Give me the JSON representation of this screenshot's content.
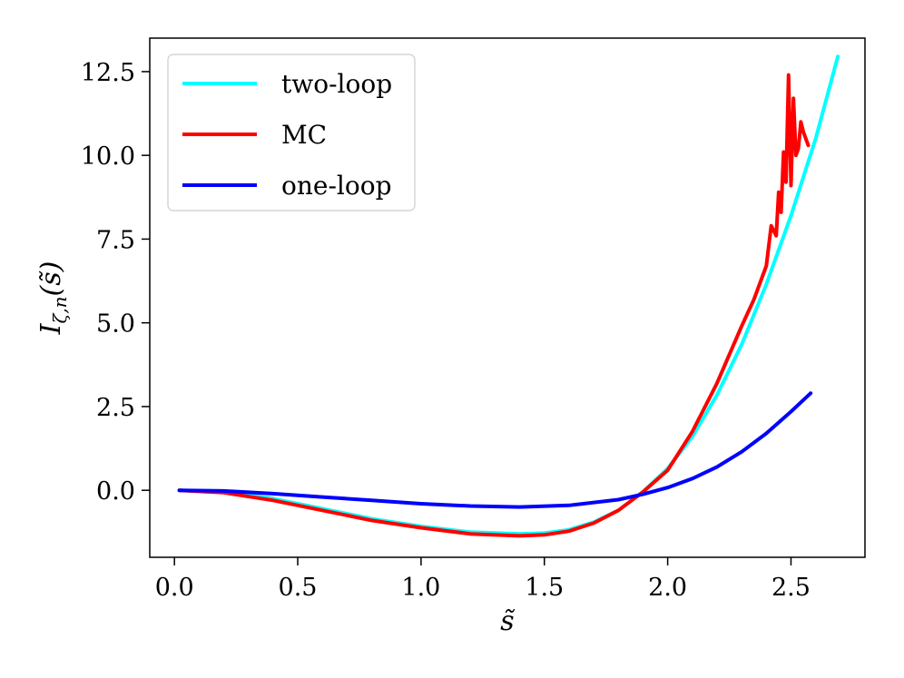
{
  "chart_data": {
    "type": "line",
    "xlabel": "s̃",
    "ylabel": "I",
    "ylabel_sub": "ζ,n",
    "ylabel_arg": "(s̃)",
    "xlim": [
      -0.1,
      2.8
    ],
    "ylim": [
      -2.0,
      13.5
    ],
    "xticks": [
      0.0,
      0.5,
      1.0,
      1.5,
      2.0,
      2.5
    ],
    "xtick_labels": [
      "0.0",
      "0.5",
      "1.0",
      "1.5",
      "2.0",
      "2.5"
    ],
    "yticks": [
      0.0,
      2.5,
      5.0,
      7.5,
      10.0,
      12.5
    ],
    "ytick_labels": [
      "0.0",
      "2.5",
      "5.0",
      "7.5",
      "10.0",
      "12.5"
    ],
    "grid": false,
    "legend_position": "upper-left",
    "colors": {
      "two_loop": "#00ffff",
      "mc": "#ff0000",
      "one_loop": "#0000ff"
    },
    "series": [
      {
        "name": "two-loop",
        "color": "#00ffff",
        "x": [
          0.02,
          0.2,
          0.4,
          0.6,
          0.8,
          1.0,
          1.2,
          1.4,
          1.5,
          1.6,
          1.7,
          1.8,
          1.9,
          2.0,
          2.1,
          2.2,
          2.3,
          2.4,
          2.5,
          2.6,
          2.69
        ],
        "y": [
          0.0,
          -0.05,
          -0.25,
          -0.55,
          -0.85,
          -1.08,
          -1.25,
          -1.3,
          -1.28,
          -1.18,
          -0.95,
          -0.6,
          -0.05,
          0.65,
          1.6,
          2.85,
          4.35,
          6.15,
          8.2,
          10.5,
          12.95
        ]
      },
      {
        "name": "MC",
        "color": "#ff0000",
        "x": [
          0.02,
          0.2,
          0.4,
          0.6,
          0.8,
          1.0,
          1.2,
          1.4,
          1.5,
          1.6,
          1.7,
          1.8,
          1.9,
          2.0,
          2.1,
          2.2,
          2.3,
          2.35,
          2.4,
          2.42,
          2.44,
          2.45,
          2.46,
          2.47,
          2.48,
          2.49,
          2.5,
          2.51,
          2.52,
          2.53,
          2.54,
          2.55,
          2.57
        ],
        "y": [
          0.0,
          -0.07,
          -0.3,
          -0.6,
          -0.9,
          -1.12,
          -1.3,
          -1.36,
          -1.33,
          -1.22,
          -0.98,
          -0.6,
          -0.05,
          0.6,
          1.75,
          3.2,
          4.9,
          5.7,
          6.7,
          7.9,
          7.6,
          8.9,
          8.3,
          10.1,
          9.2,
          12.4,
          9.1,
          11.7,
          10.0,
          10.2,
          11.0,
          10.7,
          10.3
        ]
      },
      {
        "name": "one-loop",
        "color": "#0000ff",
        "x": [
          0.02,
          0.2,
          0.4,
          0.6,
          0.8,
          1.0,
          1.2,
          1.4,
          1.6,
          1.8,
          1.9,
          2.0,
          2.1,
          2.2,
          2.3,
          2.4,
          2.5,
          2.58
        ],
        "y": [
          0.0,
          -0.02,
          -0.1,
          -0.2,
          -0.3,
          -0.4,
          -0.47,
          -0.5,
          -0.45,
          -0.28,
          -0.12,
          0.08,
          0.35,
          0.7,
          1.15,
          1.7,
          2.35,
          2.9
        ]
      }
    ]
  }
}
